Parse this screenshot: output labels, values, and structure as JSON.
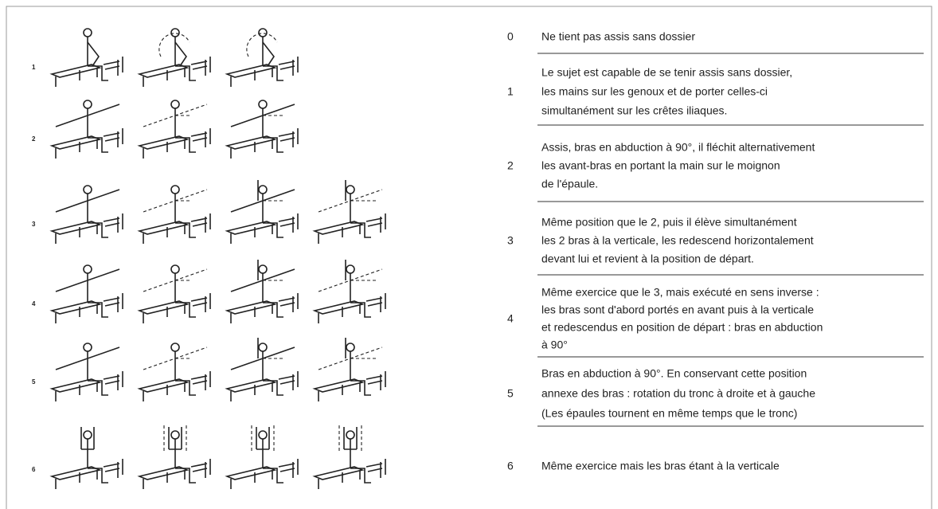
{
  "rows": [
    {
      "level": "0",
      "lines": [
        "Ne tient pas assis sans dossier"
      ]
    },
    {
      "level": "1",
      "lines": [
        "Le sujet est capable de se tenir assis sans dossier,",
        "les mains sur les genoux et de porter celles-ci",
        "simultanément  sur les crêtes iliaques."
      ]
    },
    {
      "level": "2",
      "lines": [
        "Assis, bras en abduction à 90°, il fléchit alternativement",
        "les avant-bras en portant la main sur le moignon",
        "de l'épaule."
      ]
    },
    {
      "level": "3",
      "lines": [
        "Même position que le 2, puis il élève simultanément",
        "les 2 bras à la verticale, les redescend  horizontalement",
        "devant lui et revient à la position de départ."
      ]
    },
    {
      "level": "4",
      "lines": [
        "Même exercice que le 3, mais exécuté en sens inverse :",
        "les bras sont d'abord portés en avant puis à la verticale",
        "et redescendus en position de départ : bras en abduction",
        "à 90°"
      ]
    },
    {
      "level": "5",
      "lines": [
        "Bras en abduction à 90°. En conservant  cette position",
        "annexe des bras : rotation du tronc à droite et à gauche",
        "(Les épaules tournent en même temps que le tronc)"
      ]
    },
    {
      "level": "6",
      "lines": [
        "Même exercice mais les bras étant à la verticale"
      ]
    }
  ]
}
